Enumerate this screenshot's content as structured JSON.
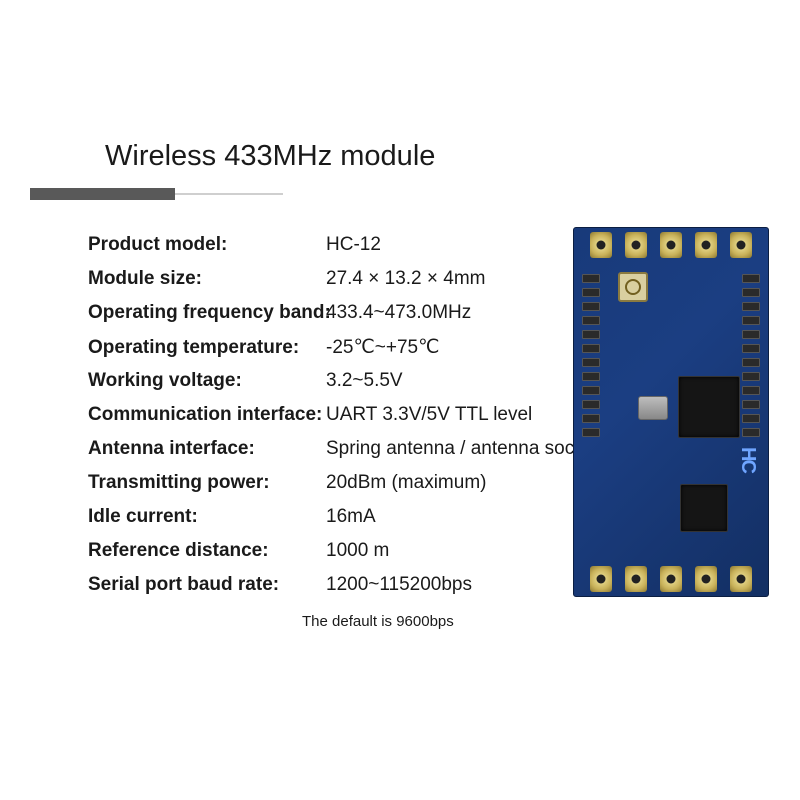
{
  "title": "Wireless 433MHz module",
  "specs": [
    {
      "label": "Product model:",
      "value": "HC-12"
    },
    {
      "label": "Module size:",
      "value": "27.4 × 13.2 × 4mm"
    },
    {
      "label": "Operating frequency band:",
      "value": "433.4~473.0MHz"
    },
    {
      "label": "Operating temperature:",
      "value": "-25℃~+75℃"
    },
    {
      "label": "Working voltage:",
      "value": "3.2~5.5V"
    },
    {
      "label": "Communication interface:",
      "value": "UART 3.3V/5V TTL  level"
    },
    {
      "label": "Antenna interface:",
      "value": "Spring antenna / antenna socket"
    },
    {
      "label": "Transmitting power:",
      "value": "20dBm (maximum)"
    },
    {
      "label": "Idle current:",
      "value": "16mA"
    },
    {
      "label": "Reference distance:",
      "value": "1000 m"
    },
    {
      "label": "Serial port baud rate:",
      "value": "1200~115200bps"
    }
  ],
  "footnote": "The default is 9600bps",
  "board": {
    "logo_text": "HC"
  },
  "style": {
    "title_fontsize": 29,
    "label_fontsize": 19,
    "value_fontsize": 19,
    "text_color": "#1a1a1a",
    "underline_dark": "#595959",
    "underline_light": "#cfcfcf",
    "pcb_gradient": [
      "#183a7a",
      "#1b3e82",
      "#132f63"
    ],
    "pad_color": "#c9b25a",
    "chip_color": "#151515"
  }
}
